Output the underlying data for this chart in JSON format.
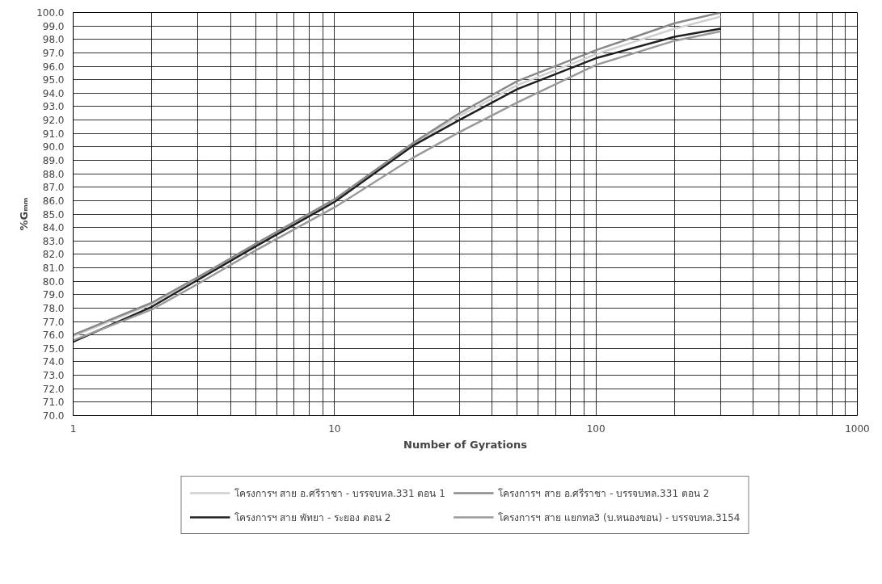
{
  "chart_data": {
    "type": "line",
    "xlabel": "Number of Gyrations",
    "ylabel": "%Gₘₘ",
    "x": [
      1,
      2,
      3,
      5,
      10,
      20,
      30,
      50,
      100,
      200,
      300
    ],
    "series": [
      {
        "name": "โครงการฯ สาย อ.ศรีราชา - บรรจบทล.331 ตอน 1",
        "color": "#d0d0d0",
        "values": [
          75.9,
          78.3,
          80.2,
          82.7,
          86.0,
          90.2,
          92.3,
          94.6,
          96.9,
          98.8,
          99.7
        ]
      },
      {
        "name": "โครงการฯ สาย อ.ศรีราชา - บรรจบทล.331 ตอน 2",
        "color": "#8a8a8a",
        "values": [
          76.0,
          78.4,
          80.3,
          82.8,
          86.1,
          90.3,
          92.5,
          94.9,
          97.2,
          99.2,
          100.0
        ]
      },
      {
        "name": "โครงการฯ สาย พัทยา - ระยอง ตอน 2",
        "color": "#202020",
        "values": [
          75.5,
          78.1,
          80.1,
          82.6,
          85.9,
          90.1,
          92.0,
          94.3,
          96.6,
          98.2,
          98.8
        ]
      },
      {
        "name": "โครงการฯ สาย แยกทล3 (บ.หนองขอน) - บรรจบทล.3154",
        "color": "#9a9a9a",
        "values": [
          75.6,
          77.9,
          79.8,
          82.3,
          85.5,
          89.2,
          91.1,
          93.3,
          96.1,
          97.9,
          98.6
        ]
      }
    ],
    "log": "x",
    "xlim": [
      1,
      1000
    ],
    "ylim": [
      70,
      100
    ],
    "xticks": [
      1,
      {
        "value": 2,
        "label": null
      },
      {
        "value": 3,
        "label": null
      },
      {
        "value": 4,
        "label": null
      },
      {
        "value": 5,
        "label": null
      },
      {
        "value": 6,
        "label": null
      },
      {
        "value": 7,
        "label": null
      },
      {
        "value": 8,
        "label": null
      },
      {
        "value": 9,
        "label": null
      },
      10,
      {
        "value": 20,
        "label": null
      },
      {
        "value": 30,
        "label": null
      },
      {
        "value": 40,
        "label": null
      },
      {
        "value": 50,
        "label": null
      },
      {
        "value": 60,
        "label": null
      },
      {
        "value": 70,
        "label": null
      },
      {
        "value": 80,
        "label": null
      },
      {
        "value": 90,
        "label": null
      },
      100,
      {
        "value": 200,
        "label": null
      },
      {
        "value": 300,
        "label": null
      },
      {
        "value": 400,
        "label": null
      },
      {
        "value": 500,
        "label": null
      },
      {
        "value": 600,
        "label": null
      },
      {
        "value": 700,
        "label": null
      },
      {
        "value": 800,
        "label": null
      },
      {
        "value": 900,
        "label": null
      },
      1000
    ],
    "yticks": [
      {
        "value": 70,
        "label": "70.0"
      },
      {
        "value": 71,
        "label": "71.0"
      },
      {
        "value": 72,
        "label": "72.0"
      },
      {
        "value": 73,
        "label": "73.0"
      },
      {
        "value": 74,
        "label": "74.0"
      },
      {
        "value": 75,
        "label": "75.0"
      },
      {
        "value": 76,
        "label": "76.0"
      },
      {
        "value": 77,
        "label": "77.0"
      },
      {
        "value": 78,
        "label": "78.0"
      },
      {
        "value": 79,
        "label": "79.0"
      },
      {
        "value": 80,
        "label": "80.0"
      },
      {
        "value": 81,
        "label": "81.0"
      },
      {
        "value": 82,
        "label": "82.0"
      },
      {
        "value": 83,
        "label": "83.0"
      },
      {
        "value": 84,
        "label": "84.0"
      },
      {
        "value": 85,
        "label": "85.0"
      },
      {
        "value": 86,
        "label": "86.0"
      },
      {
        "value": 87,
        "label": "87.0"
      },
      {
        "value": 88,
        "label": "88.0"
      },
      {
        "value": 89,
        "label": "89.0"
      },
      {
        "value": 90,
        "label": "90.0"
      },
      {
        "value": 91,
        "label": "91.0"
      },
      {
        "value": 92,
        "label": "92.0"
      },
      {
        "value": 93,
        "label": "93.0"
      },
      {
        "value": 94,
        "label": "94.0"
      },
      {
        "value": 95,
        "label": "95.0"
      },
      {
        "value": 96,
        "label": "96.0"
      },
      {
        "value": 97,
        "label": "97.0"
      },
      {
        "value": 98,
        "label": "98.0"
      },
      {
        "value": 99,
        "label": "99.0"
      },
      {
        "value": 100,
        "label": "100.0"
      }
    ],
    "grid": true,
    "legend": "bottom",
    "marker": "none",
    "line_style": "solid"
  }
}
